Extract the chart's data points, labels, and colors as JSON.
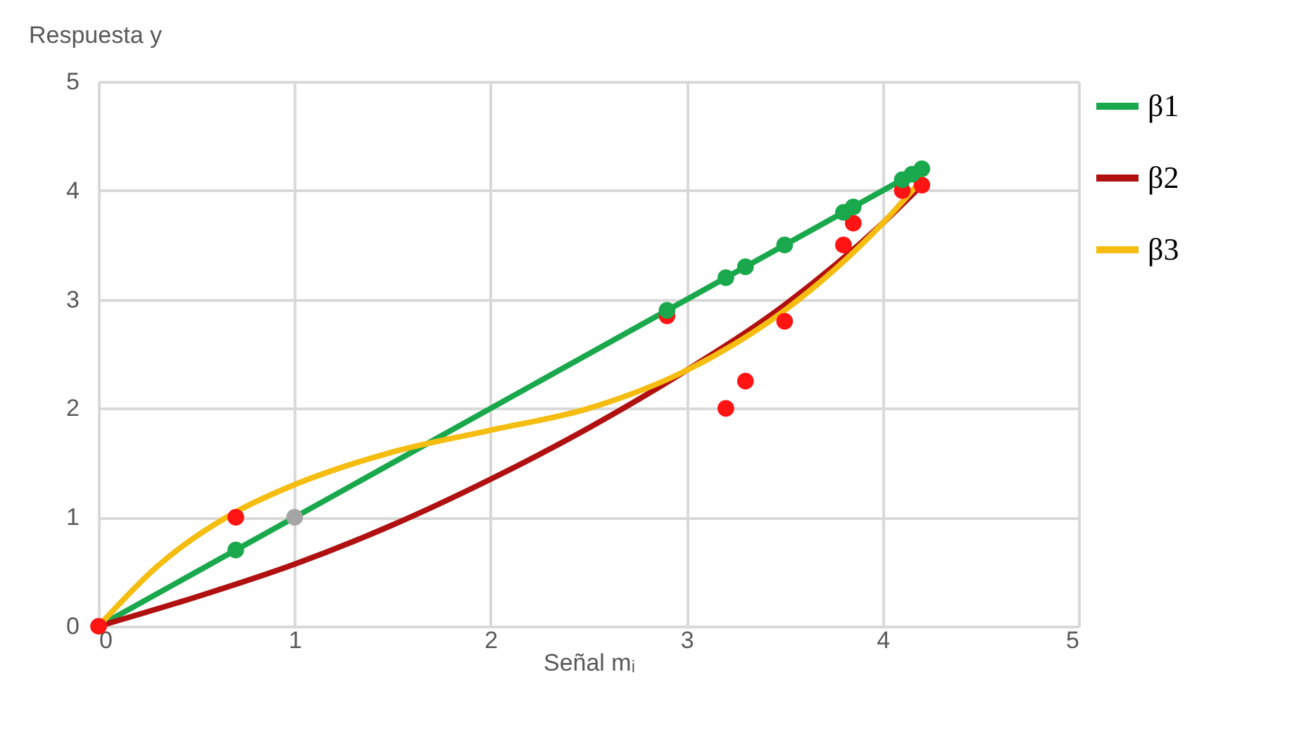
{
  "chart_data": {
    "type": "line",
    "xlabel": "Señal mᵢ",
    "ylabel": "Respuesta y",
    "xlim": [
      0,
      5
    ],
    "ylim": [
      0,
      5
    ],
    "xticks": [
      0,
      1,
      2,
      3,
      4,
      5
    ],
    "yticks": [
      0,
      1,
      2,
      3,
      4,
      5
    ],
    "grid": true,
    "legend": "right",
    "marker": "none",
    "series": [
      {
        "name": "β1",
        "color": "#19a84c",
        "x": [
          0,
          4.2
        ],
        "values": [
          0,
          4.2
        ]
      },
      {
        "name": "β2",
        "color": "#b01010",
        "x": [
          0,
          0.5,
          1,
          1.5,
          2,
          2.5,
          3,
          3.5,
          4,
          4.2
        ],
        "values": [
          0,
          0.27,
          0.57,
          0.93,
          1.35,
          1.82,
          2.35,
          2.95,
          3.7,
          4.05
        ]
      },
      {
        "name": "β3",
        "color": "#f5bd0f",
        "x": [
          0,
          0.3,
          0.7,
          1,
          1.5,
          2,
          2.5,
          3,
          3.5,
          4,
          4.2
        ],
        "values": [
          0,
          0.55,
          1.05,
          1.3,
          1.6,
          1.8,
          2.0,
          2.35,
          2.9,
          3.7,
          4.1
        ]
      },
      {
        "type": "scatter",
        "marker": "circle",
        "color": "#ff1414",
        "x": [
          0,
          0.7,
          2.9,
          3.2,
          3.3,
          3.5,
          3.8,
          3.85,
          4.1,
          4.2
        ],
        "values": [
          0,
          1.0,
          2.85,
          2.0,
          2.25,
          2.8,
          3.5,
          3.7,
          4.0,
          4.05
        ]
      },
      {
        "type": "scatter",
        "marker": "circle",
        "color": "#19a84c",
        "x": [
          0.7,
          2.9,
          3.2,
          3.3,
          3.5,
          3.8,
          3.85,
          4.1,
          4.15,
          4.2
        ],
        "values": [
          0.7,
          2.9,
          3.2,
          3.3,
          3.5,
          3.8,
          3.85,
          4.1,
          4.15,
          4.2
        ]
      },
      {
        "type": "scatter",
        "marker": "circle",
        "color": "#a5a5a5",
        "x": [
          1
        ],
        "values": [
          1
        ]
      }
    ]
  }
}
